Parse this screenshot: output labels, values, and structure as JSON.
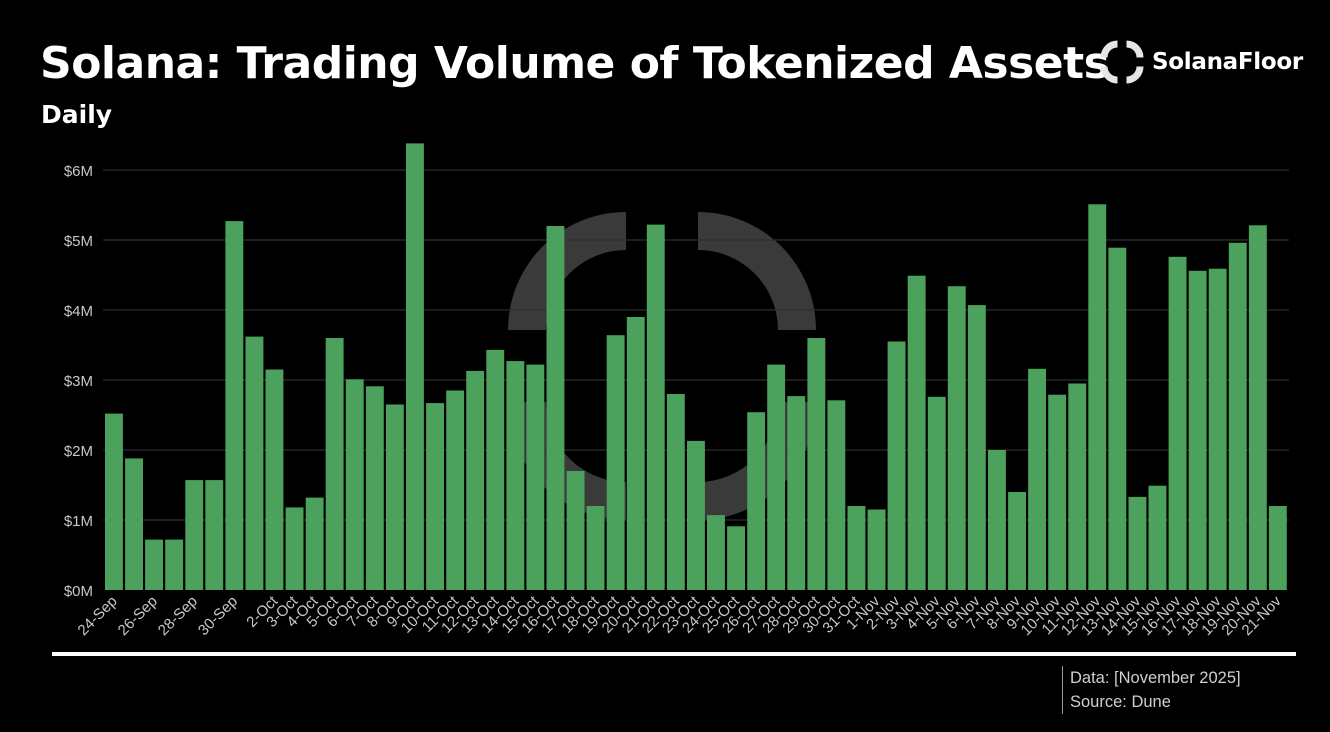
{
  "header": {
    "title": "Solana: Trading Volume of Tokenized Assets",
    "subtitle": "Daily",
    "brand": "SolanaFloor",
    "brand_icon": "solanafloor-pinwheel-icon"
  },
  "footer": {
    "data_note": "Data: [November 2025]",
    "source": "Source: Dune"
  },
  "colors": {
    "background": "#000000",
    "bar": "#4ca15c",
    "gridline": "#2e2e2e",
    "axis_text": "#c8c8c8",
    "watermark": "#3d3d3d"
  },
  "chart_data": {
    "type": "bar",
    "title": "Solana: Trading Volume of Tokenized Assets",
    "subtitle": "Daily",
    "xlabel": "",
    "ylabel": "",
    "ylim": [
      0,
      6000000
    ],
    "yticks": [
      0,
      1000000,
      2000000,
      3000000,
      4000000,
      5000000,
      6000000
    ],
    "ytick_labels": [
      "$0M",
      "$1M",
      "$2M",
      "$3M",
      "$4M",
      "$5M",
      "$6M"
    ],
    "grid": true,
    "legend": "none",
    "categories": [
      "24-Sep",
      "25-Sep",
      "26-Sep",
      "27-Sep",
      "28-Sep",
      "29-Sep",
      "30-Sep",
      "1-Oct",
      "2-Oct",
      "3-Oct",
      "4-Oct",
      "5-Oct",
      "6-Oct",
      "7-Oct",
      "8-Oct",
      "9-Oct",
      "10-Oct",
      "11-Oct",
      "12-Oct",
      "13-Oct",
      "14-Oct",
      "15-Oct",
      "16-Oct",
      "17-Oct",
      "18-Oct",
      "19-Oct",
      "20-Oct",
      "21-Oct",
      "22-Oct",
      "23-Oct",
      "24-Oct",
      "25-Oct",
      "26-Oct",
      "27-Oct",
      "28-Oct",
      "29-Oct",
      "30-Oct",
      "31-Oct",
      "1-Nov",
      "2-Nov",
      "3-Nov",
      "4-Nov",
      "5-Nov",
      "6-Nov",
      "7-Nov",
      "8-Nov",
      "9-Nov",
      "10-Nov",
      "11-Nov",
      "12-Nov",
      "13-Nov",
      "14-Nov",
      "15-Nov",
      "16-Nov",
      "17-Nov",
      "18-Nov",
      "19-Nov",
      "20-Nov",
      "21-Nov"
    ],
    "visible_tick_labels": [
      "24-Sep",
      "26-Sep",
      "28-Sep",
      "30-Sep",
      "2-Oct",
      "3-Oct",
      "4-Oct",
      "5-Oct",
      "6-Oct",
      "7-Oct",
      "8-Oct",
      "9-Oct",
      "10-Oct",
      "11-Oct",
      "12-Oct",
      "13-Oct",
      "14-Oct",
      "15-Oct",
      "16-Oct",
      "17-Oct",
      "18-Oct",
      "19-Oct",
      "20-Oct",
      "21-Oct",
      "22-Oct",
      "23-Oct",
      "24-Oct",
      "25-Oct",
      "26-Oct",
      "27-Oct",
      "28-Oct",
      "29-Oct",
      "30-Oct",
      "31-Oct",
      "1-Nov",
      "2-Nov",
      "3-Nov",
      "4-Nov",
      "5-Nov",
      "6-Nov",
      "7-Nov",
      "8-Nov",
      "9-Nov",
      "10-Nov",
      "11-Nov",
      "12-Nov",
      "13-Nov",
      "14-Nov",
      "15-Nov",
      "16-Nov",
      "17-Nov",
      "18-Nov",
      "19-Nov",
      "20-Nov",
      "21-Nov"
    ],
    "values": [
      2520000,
      1880000,
      720000,
      720000,
      1570000,
      1570000,
      5270000,
      3620000,
      3150000,
      1180000,
      1320000,
      3600000,
      3010000,
      2910000,
      2650000,
      6380000,
      2670000,
      2850000,
      3130000,
      3430000,
      3270000,
      3220000,
      5200000,
      1700000,
      1200000,
      3640000,
      3900000,
      5220000,
      2800000,
      2130000,
      1070000,
      910000,
      2540000,
      3220000,
      2770000,
      3600000,
      2710000,
      1200000,
      1150000,
      3550000,
      4490000,
      2760000,
      4340000,
      4070000,
      2000000,
      1400000,
      3160000,
      2790000,
      2950000,
      5510000,
      4890000,
      1330000,
      1490000,
      4760000,
      4560000,
      4590000,
      4960000,
      5210000,
      1200000
    ]
  }
}
